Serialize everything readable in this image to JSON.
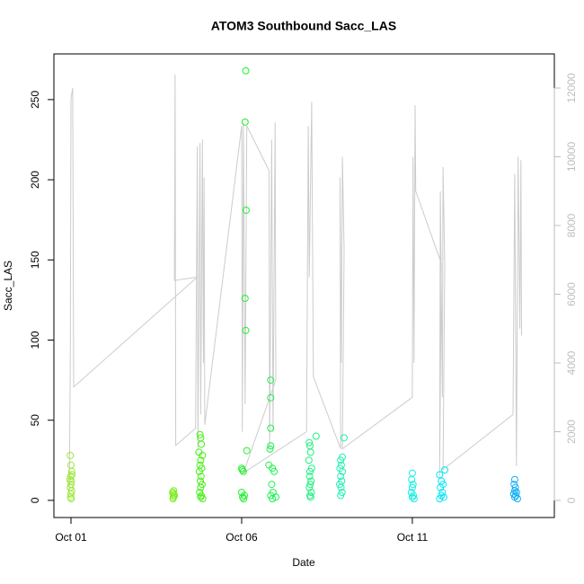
{
  "chart_data": {
    "type": "scatter",
    "title": "ATOM3 Southbound Sacc_LAS",
    "x_label": "Date",
    "y_label": "Sacc_LAS",
    "xlim": [
      0.5,
      15.16
    ],
    "xticks": [
      {
        "value": 1,
        "label": "Oct 01"
      },
      {
        "value": 6,
        "label": "Oct 06"
      },
      {
        "value": 11,
        "label": "Oct 11"
      }
    ],
    "ylim": [
      -10.7,
      278.5
    ],
    "yticks": [
      0,
      50,
      100,
      150,
      200,
      250
    ],
    "y2lim": [
      -497,
      12993
    ],
    "y2ticks": [
      0,
      2000,
      4000,
      6000,
      8000,
      10000,
      12000
    ],
    "y2_color": "#bebebe",
    "series": [
      {
        "type": "line",
        "axis": "y2",
        "color": "#cccccc",
        "x": [
          0.95,
          0.98,
          1.0,
          1.05,
          1.08,
          4.7,
          4.03,
          4.05,
          4.07,
          4.65,
          4.7,
          4.72,
          4.78,
          4.8,
          4.85,
          4.88,
          4.9,
          4.92,
          6.0,
          6.02,
          6.05,
          6.1,
          6.15,
          6.8,
          6.82,
          6.88,
          6.92,
          6.98,
          7.0,
          6.05,
          7.9,
          7.95,
          7.98,
          8.05,
          8.1,
          8.9,
          8.88,
          8.92,
          8.95,
          9.0,
          8.95,
          11.0,
          11.02,
          11.05,
          11.08,
          11.1,
          11.85,
          11.8,
          11.82,
          11.88,
          11.9,
          11.95,
          11.9,
          13.95,
          14.0,
          14.05,
          14.1,
          14.15,
          14.18,
          14.2
        ],
        "values": [
          200,
          3800,
          11700,
          12000,
          3300,
          6500,
          6400,
          12400,
          1600,
          2100,
          10300,
          1500,
          10400,
          2500,
          10500,
          4000,
          9400,
          2200,
          10900,
          2000,
          11000,
          2800,
          10900,
          9600,
          1500,
          10500,
          2000,
          11000,
          3500,
          800,
          2000,
          10900,
          6500,
          11600,
          3600,
          1500,
          9400,
          4000,
          10000,
          7300,
          1500,
          3000,
          10000,
          4000,
          11500,
          9000,
          6900,
          700,
          9000,
          3000,
          9700,
          6800,
          900,
          2500,
          9500,
          1000,
          10000,
          5000,
          9900,
          4800
        ]
      },
      {
        "color": "#9be83a",
        "x": [
          0.98,
          1.0,
          1.02,
          0.99,
          1.01,
          1.0,
          0.98,
          1.02,
          1.0,
          0.99,
          1.01,
          1.03,
          0.97
        ],
        "values": [
          28,
          22,
          18,
          15,
          12,
          10,
          8,
          6,
          4,
          2,
          1,
          16,
          13
        ]
      },
      {
        "color": "#7aec1c",
        "x": [
          3.98,
          4.0,
          4.02,
          4.0,
          3.99,
          4.01,
          4.03
        ],
        "values": [
          5,
          4,
          3,
          2,
          1,
          6,
          3
        ]
      },
      {
        "color": "#44f010",
        "x": [
          4.78,
          4.8,
          4.82,
          4.75,
          4.85,
          4.8,
          4.78,
          4.83,
          4.76,
          4.81,
          4.79,
          4.84,
          4.8,
          4.77,
          4.82,
          4.8,
          4.86
        ],
        "values": [
          41,
          39,
          35,
          30,
          28,
          25,
          22,
          20,
          18,
          15,
          12,
          10,
          8,
          5,
          3,
          2,
          1
        ]
      },
      {
        "color": "#1ef22c",
        "x": [
          6.12,
          6.1,
          6.13,
          6.1,
          6.12,
          6.15,
          6.0,
          6.02,
          6.05,
          6.0,
          6.08,
          6.03,
          6.06
        ],
        "values": [
          268,
          236,
          181,
          126,
          106,
          31,
          20,
          19,
          18,
          5,
          3,
          2,
          1
        ]
      },
      {
        "color": "#1ff250",
        "x": [
          6.85,
          6.85,
          6.85,
          6.85,
          6.83,
          6.8,
          6.9,
          6.95,
          6.88,
          6.92,
          6.85,
          7.0,
          6.9
        ],
        "values": [
          75,
          64,
          45,
          34,
          32,
          22,
          20,
          18,
          10,
          5,
          3,
          2,
          1
        ]
      },
      {
        "color": "#1ff080",
        "x": [
          7.98,
          8.0,
          8.02,
          7.97,
          8.05,
          8.0,
          7.99,
          8.03,
          8.01,
          7.98,
          8.04,
          8.0,
          8.02,
          8.18
        ],
        "values": [
          36,
          34,
          30,
          25,
          20,
          18,
          15,
          12,
          10,
          8,
          5,
          3,
          2,
          40
        ]
      },
      {
        "color": "#1ff0b2",
        "x": [
          9.0,
          8.95,
          8.9,
          8.92,
          8.88,
          8.95,
          8.9,
          8.93,
          8.87,
          8.91,
          8.94,
          8.9
        ],
        "values": [
          39,
          27,
          25,
          22,
          20,
          18,
          15,
          12,
          10,
          8,
          5,
          3
        ]
      },
      {
        "color": "#10f0e2",
        "x": [
          11.0,
          10.98,
          11.02,
          11.0,
          10.97,
          11.03,
          11.0,
          11.05
        ],
        "values": [
          17,
          13,
          10,
          8,
          5,
          3,
          2,
          1
        ]
      },
      {
        "color": "#05e6f7",
        "x": [
          11.95,
          11.8,
          11.85,
          11.9,
          11.82,
          11.88,
          11.85,
          11.92,
          11.8
        ],
        "values": [
          19,
          16,
          12,
          10,
          8,
          5,
          3,
          2,
          1
        ]
      },
      {
        "color": "#12aef2",
        "x": [
          14.0,
          13.98,
          14.02,
          14.0,
          14.05,
          13.97,
          14.03,
          14.0,
          14.08
        ],
        "values": [
          13,
          10,
          8,
          6,
          5,
          4,
          3,
          2,
          1
        ]
      }
    ]
  }
}
